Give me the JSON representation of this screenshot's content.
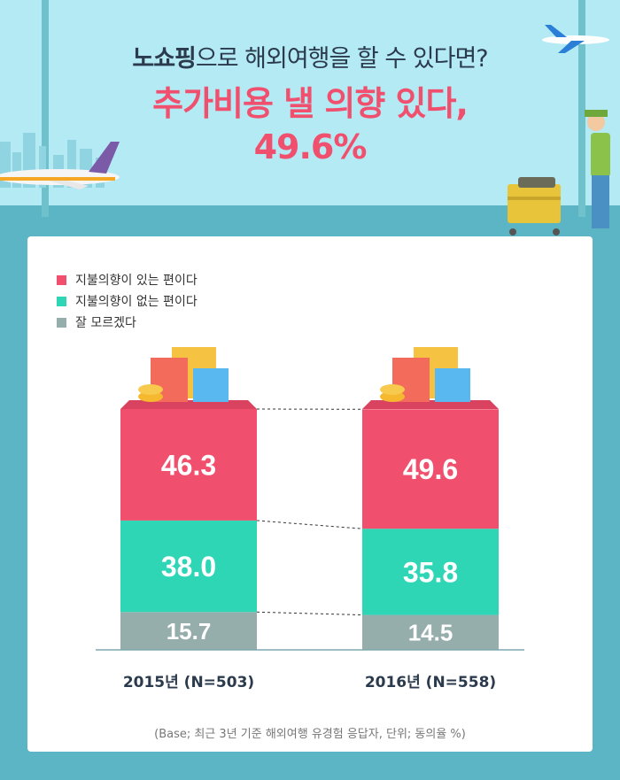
{
  "title": {
    "line1_bold": "노쇼핑",
    "line1_rest": "으로 해외여행을 할 수 있다면?",
    "line2": "추가비용 낼 의향 있다,",
    "line3": "49.6%"
  },
  "legend": [
    {
      "label": "지불의향이 있는 편이다",
      "color": "#f0506e"
    },
    {
      "label": "지불의향이 없는 편이다",
      "color": "#2fd6b6"
    },
    {
      "label": "잘 모르겠다",
      "color": "#95aeab"
    }
  ],
  "chart_data": {
    "type": "bar",
    "stacked": true,
    "categories": [
      "2015년 (N=503)",
      "2016년 (N=558)"
    ],
    "series": [
      {
        "name": "지불의향이 있는 편이다",
        "values": [
          46.3,
          49.6
        ],
        "color": "#f0506e"
      },
      {
        "name": "지불의향이 없는 편이다",
        "values": [
          38.0,
          35.8
        ],
        "color": "#2fd6b6"
      },
      {
        "name": "잘 모르겠다",
        "values": [
          15.7,
          14.5
        ],
        "color": "#95aeab"
      }
    ],
    "ylim": [
      0,
      100
    ]
  },
  "footnote": "(Base; 최근 3년 기준 해외여행 유경험 응답자, 단위; 동의율 %)"
}
